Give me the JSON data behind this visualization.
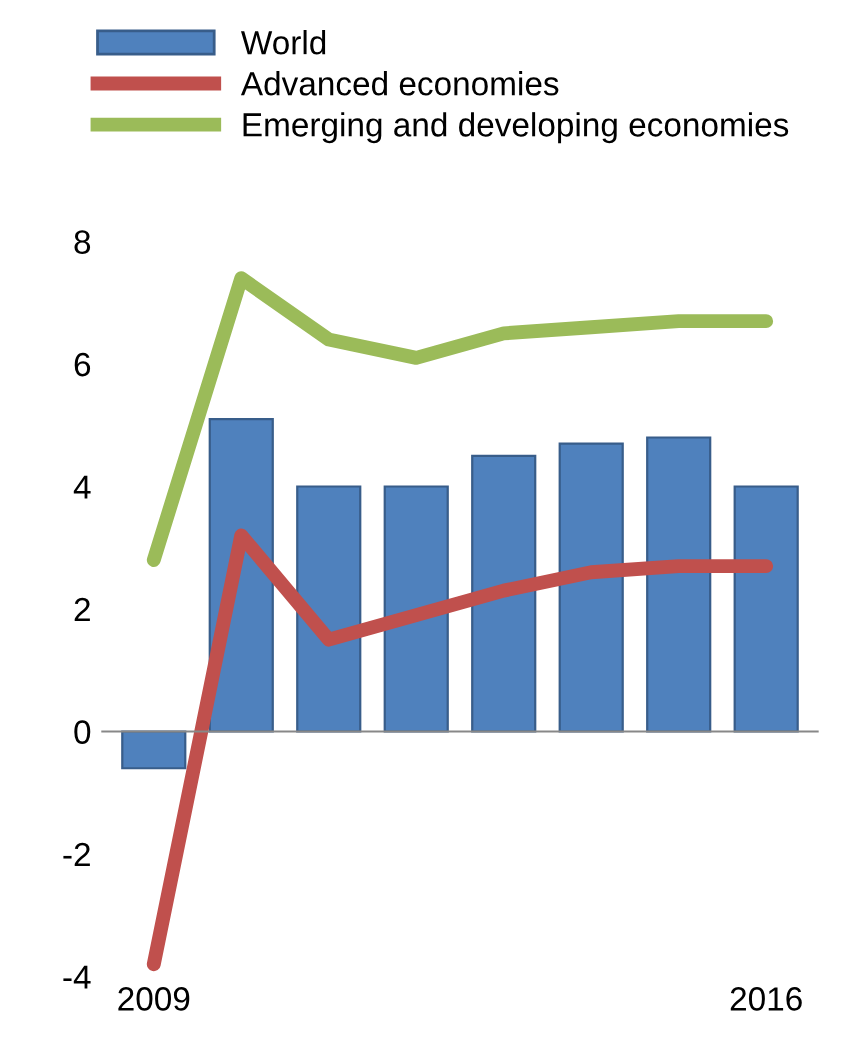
{
  "chart_data": {
    "type": "bar",
    "categories": [
      "2009",
      null,
      null,
      null,
      null,
      null,
      null,
      "2016"
    ],
    "series": [
      {
        "name": "World",
        "color": "#4f81bd",
        "values": [
          -0.6,
          5.1,
          4.0,
          4.0,
          4.5,
          4.7,
          4.8,
          4.0
        ]
      },
      {
        "name": "Advanced economies",
        "type": "line",
        "color": "#c0504d",
        "values": [
          -3.8,
          3.2,
          1.5,
          1.9,
          2.3,
          2.6,
          2.7,
          2.7
        ]
      },
      {
        "name": "Emerging and developing economies",
        "type": "line",
        "color": "#9bbb59",
        "values": [
          2.8,
          7.4,
          6.4,
          6.1,
          6.5,
          6.6,
          6.7,
          6.7
        ]
      }
    ],
    "ylim": [
      -4,
      8
    ],
    "yticks": [
      -4,
      -2,
      0,
      2,
      4,
      6,
      8
    ],
    "grid": false,
    "ref_lines": [
      {
        "axis": "y",
        "value": 0,
        "color": "#888888"
      }
    ],
    "legend": "top left",
    "line_style": "solid",
    "marker": "none"
  }
}
